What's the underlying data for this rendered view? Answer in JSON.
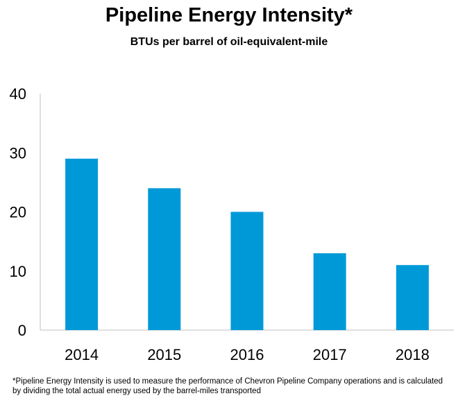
{
  "chart_data": {
    "type": "bar",
    "title": "Pipeline Energy Intensity*",
    "subtitle": "BTUs per barrel of oil-equivalent-mile",
    "categories": [
      "2014",
      "2015",
      "2016",
      "2017",
      "2018"
    ],
    "values": [
      29,
      24,
      20,
      13,
      11
    ],
    "ylim": [
      0,
      40
    ],
    "yticks": [
      "0",
      "10",
      "20",
      "30",
      "40"
    ],
    "grid": false,
    "legend": "none",
    "bar_color": "#0099d8"
  },
  "footnote": "*Pipeline Energy Intensity is used to measure the performance of Chevron Pipeline Company operations and is calculated by dividing the total actual energy used by the barrel-miles transported"
}
